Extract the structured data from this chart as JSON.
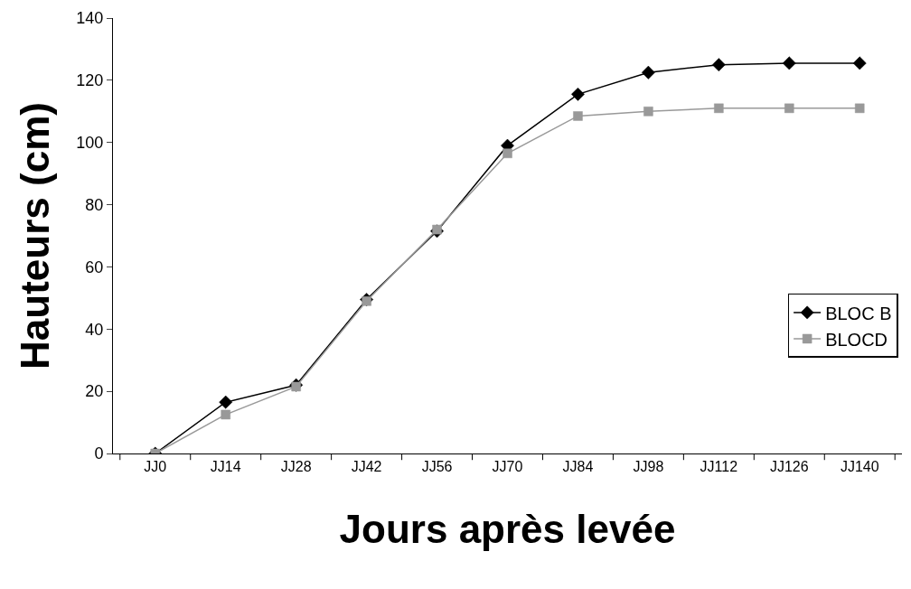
{
  "chart_data": {
    "type": "line",
    "xlabel": "Jours après levée",
    "ylabel": "Hauteurs (cm)",
    "categories": [
      "JJ0",
      "JJ14",
      "JJ28",
      "JJ42",
      "JJ56",
      "JJ70",
      "JJ84",
      "JJ98",
      "JJ112",
      "JJ126",
      "JJ140"
    ],
    "series": [
      {
        "name": "BLOC B",
        "color": "#000000",
        "marker": "diamond",
        "values": [
          0,
          16.5,
          22,
          49.5,
          71.5,
          99,
          115.5,
          122.5,
          125,
          125.5,
          125.5
        ]
      },
      {
        "name": "BLOCD",
        "color": "#999999",
        "marker": "square",
        "values": [
          0,
          12.5,
          21.5,
          49,
          72,
          96.5,
          108.5,
          110,
          111,
          111,
          111
        ]
      }
    ],
    "ylim": [
      0,
      140
    ],
    "yticks": [
      0,
      20,
      40,
      60,
      80,
      100,
      120,
      140
    ],
    "legend": "bottom right"
  }
}
